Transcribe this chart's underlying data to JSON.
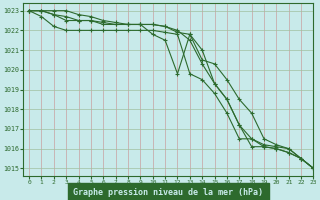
{
  "title": "Graphe pression niveau de la mer (hPa)",
  "bg_color": "#c8eaea",
  "grid_color": "#b0c8b0",
  "line_color": "#2d6a2d",
  "xlim": [
    -0.5,
    23
  ],
  "ylim": [
    1014.6,
    1023.4
  ],
  "yticks": [
    1015,
    1016,
    1017,
    1018,
    1019,
    1020,
    1021,
    1022,
    1023
  ],
  "xticks": [
    0,
    1,
    2,
    3,
    4,
    5,
    6,
    7,
    8,
    9,
    10,
    11,
    12,
    13,
    14,
    15,
    16,
    17,
    18,
    19,
    20,
    21,
    22,
    23
  ],
  "series": [
    [
      1023.0,
      1023.0,
      1022.8,
      1022.5,
      1022.5,
      1022.5,
      1022.4,
      1022.3,
      1022.3,
      1022.3,
      1022.3,
      1022.2,
      1021.9,
      1021.8,
      1021.0,
      1019.3,
      1018.5,
      1017.2,
      1016.1,
      1016.1,
      1016.0,
      1015.8,
      1015.5,
      1015.0
    ],
    [
      1023.0,
      1023.0,
      1022.8,
      1022.7,
      1022.5,
      1022.5,
      1022.3,
      1022.3,
      1022.3,
      1022.3,
      1022.3,
      1022.2,
      1022.0,
      1021.5,
      1020.3,
      1019.3,
      1018.5,
      1017.2,
      1016.5,
      1016.1,
      1016.0,
      1015.8,
      1015.5,
      1015.0
    ],
    [
      1023.0,
      1022.7,
      1022.2,
      1022.0,
      1022.0,
      1022.0,
      1022.0,
      1022.0,
      1022.0,
      1022.0,
      1022.0,
      1021.9,
      1021.8,
      1019.8,
      1019.5,
      1018.8,
      1017.8,
      1016.5,
      1016.5,
      1016.2,
      1016.1,
      1016.0,
      1015.5,
      1015.0
    ],
    [
      1023.0,
      1023.0,
      1023.0,
      1023.0,
      1022.8,
      1022.7,
      1022.5,
      1022.4,
      1022.3,
      1022.3,
      1021.8,
      1021.5,
      1019.8,
      1021.8,
      1020.5,
      1020.3,
      1019.5,
      1018.5,
      1017.8,
      1016.5,
      1016.2,
      1016.0,
      1015.5,
      1015.0
    ]
  ]
}
